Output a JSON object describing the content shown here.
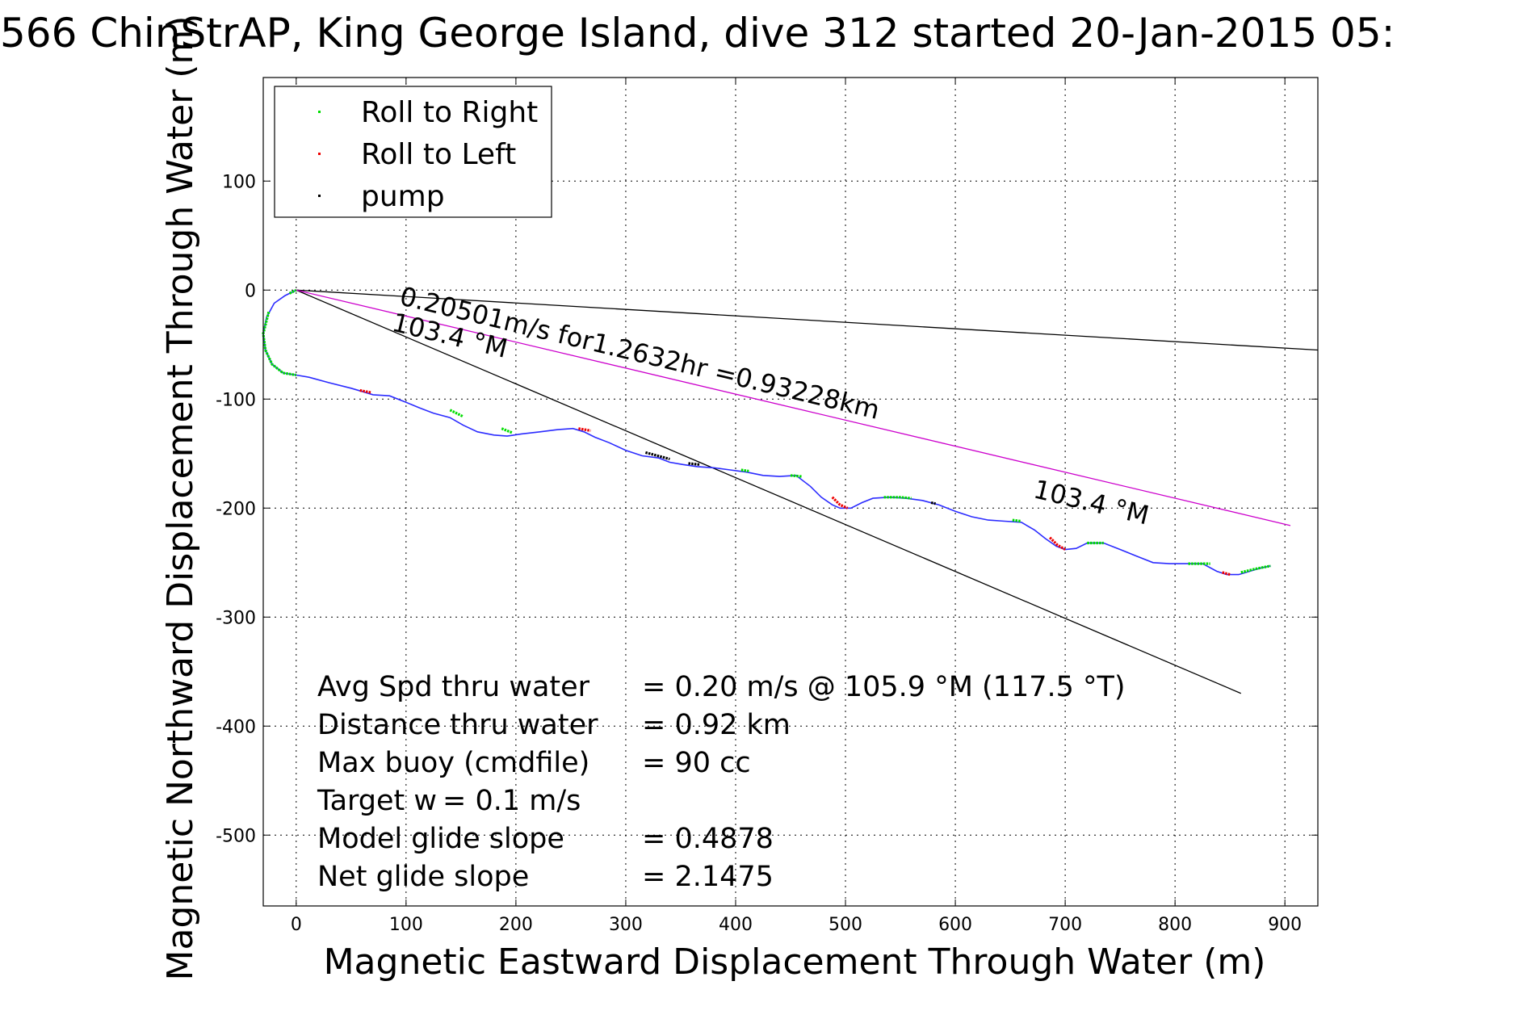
{
  "chart_data": {
    "type": "line",
    "title": "566 ChinStrAP, King George Island, dive 312 started 20-Jan-2015 05:",
    "xlabel": "Magnetic Eastward Displacement Through Water (m)",
    "ylabel": "Magnetic Northward Displacement Through Water (m)",
    "xlim": [
      -30,
      930
    ],
    "ylim": [
      -565,
      195
    ],
    "xticks": [
      0,
      100,
      200,
      300,
      400,
      500,
      600,
      700,
      800,
      900
    ],
    "yticks": [
      -500,
      -400,
      -300,
      -200,
      -100,
      0,
      100
    ],
    "grid": true,
    "legend": {
      "position": "top-left",
      "entries": [
        {
          "label": "Roll to Right",
          "color": "#00dd00"
        },
        {
          "label": "Roll to Left",
          "color": "#ee0000"
        },
        {
          "label": "pump",
          "color": "#000000"
        }
      ]
    },
    "track": {
      "color": "#2b2bff",
      "x": [
        0,
        -10,
        -20,
        -27,
        -30,
        -28,
        -22,
        -12,
        0,
        12,
        30,
        50,
        60,
        70,
        85,
        100,
        112,
        125,
        140,
        152,
        165,
        180,
        192,
        205,
        222,
        238,
        252,
        262,
        272,
        285,
        300,
        315,
        330,
        340,
        352,
        365,
        380,
        395,
        410,
        425,
        440,
        455,
        468,
        478,
        488,
        495,
        505,
        515,
        525,
        540,
        555,
        570,
        585,
        600,
        615,
        630,
        645,
        660,
        672,
        682,
        692,
        700,
        710,
        720,
        735,
        750,
        765,
        780,
        795,
        810,
        825,
        838,
        847,
        858,
        868,
        878,
        887
      ],
      "y": [
        0,
        -5,
        -12,
        -25,
        -40,
        -55,
        -68,
        -76,
        -78,
        -80,
        -85,
        -90,
        -93,
        -96,
        -97,
        -103,
        -108,
        -113,
        -117,
        -124,
        -130,
        -133,
        -134,
        -132,
        -130,
        -128,
        -127,
        -130,
        -135,
        -140,
        -147,
        -152,
        -154,
        -158,
        -160,
        -162,
        -163,
        -165,
        -167,
        -170,
        -171,
        -170,
        -180,
        -190,
        -197,
        -200,
        -200,
        -195,
        -191,
        -190,
        -191,
        -193,
        -197,
        -203,
        -208,
        -211,
        -212,
        -213,
        -220,
        -228,
        -235,
        -238,
        -237,
        -232,
        -232,
        -238,
        -244,
        -250,
        -251,
        -251,
        -251,
        -258,
        -261,
        -261,
        -258,
        -255,
        -253
      ]
    },
    "roll_right_segments": [
      {
        "x": [
          -25,
          -30,
          -28,
          -22,
          -12,
          0
        ],
        "y": [
          -20,
          -40,
          -55,
          -68,
          -76,
          -78
        ]
      },
      {
        "x": [
          -6,
          -2,
          0
        ],
        "y": [
          -3,
          -1,
          0
        ]
      },
      {
        "x": [
          140,
          152
        ],
        "y": [
          -110,
          -116
        ]
      },
      {
        "x": [
          187,
          197
        ],
        "y": [
          -127,
          -131
        ]
      },
      {
        "x": [
          405,
          412
        ],
        "y": [
          -165,
          -166
        ]
      },
      {
        "x": [
          450,
          460
        ],
        "y": [
          -170,
          -171
        ]
      },
      {
        "x": [
          535,
          550,
          560
        ],
        "y": [
          -190,
          -190,
          -191
        ]
      },
      {
        "x": [
          652,
          660
        ],
        "y": [
          -211,
          -212
        ]
      },
      {
        "x": [
          720,
          735
        ],
        "y": [
          -232,
          -232
        ]
      },
      {
        "x": [
          812,
          825,
          832
        ],
        "y": [
          -251,
          -251,
          -251
        ]
      },
      {
        "x": [
          860,
          872,
          887
        ],
        "y": [
          -259,
          -256,
          -253
        ]
      }
    ],
    "roll_left_segments": [
      {
        "x": [
          58,
          68
        ],
        "y": [
          -92,
          -94
        ]
      },
      {
        "x": [
          257,
          268
        ],
        "y": [
          -127,
          -129
        ]
      },
      {
        "x": [
          488,
          495,
          502
        ],
        "y": [
          -190,
          -197,
          -200
        ]
      },
      {
        "x": [
          686,
          693,
          700
        ],
        "y": [
          -227,
          -234,
          -238
        ]
      },
      {
        "x": [
          843,
          850
        ],
        "y": [
          -259,
          -261
        ]
      }
    ],
    "pump_segments": [
      {
        "x": [
          318,
          340
        ],
        "y": [
          -149,
          -155
        ]
      },
      {
        "x": [
          357,
          367
        ],
        "y": [
          -159,
          -160
        ]
      },
      {
        "x": [
          578,
          582
        ],
        "y": [
          -195,
          -196
        ]
      }
    ],
    "reference_lines": [
      {
        "from": [
          0,
          0
        ],
        "to": [
          930,
          -55
        ],
        "color": "#000000"
      },
      {
        "from": [
          0,
          0
        ],
        "to": [
          860,
          -370
        ],
        "color": "#000000"
      },
      {
        "from": [
          0,
          0
        ],
        "to": [
          905,
          -216
        ],
        "color": "#cc00cc"
      }
    ],
    "annotations": [
      {
        "text": "0.20501m/s for1.2632hr =0.93228km",
        "x": 93,
        "y": -13,
        "angle": 13.5
      },
      {
        "text": "103.4 °M",
        "x": 86,
        "y": -37,
        "angle": 13.5
      },
      {
        "text": "103.4 °M",
        "x": 670,
        "y": -190,
        "angle": 13.5
      }
    ],
    "stats": [
      {
        "label": "Avg Spd thru water",
        "value": "=  0.20 m/s @ 105.9 °M (117.5 °T)"
      },
      {
        "label": "Distance thru water",
        "value": "=  0.92 km"
      },
      {
        "label": "Max buoy (cmdfile)",
        "value": "= 90 cc"
      },
      {
        "label": "Target w",
        "value": "= 0.1 m/s"
      },
      {
        "label": "Model glide slope",
        "value": "= 0.4878"
      },
      {
        "label": "Net glide slope",
        "value": "= 2.1475"
      }
    ]
  }
}
